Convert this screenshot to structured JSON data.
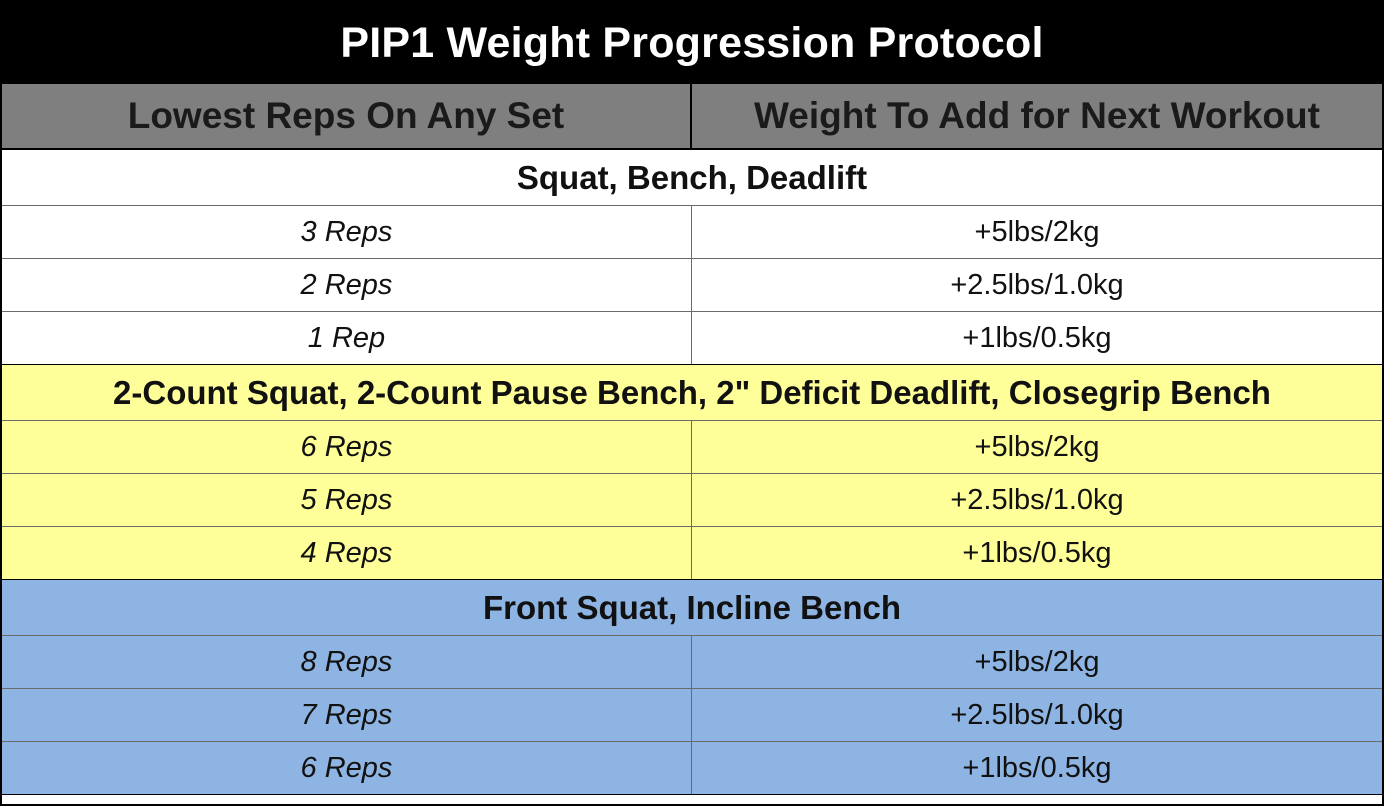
{
  "title": "PIP1 Weight Progression Protocol",
  "headers": {
    "left": "Lowest Reps On Any Set",
    "right": "Weight To Add for Next Workout"
  },
  "groups": [
    {
      "title": "Squat, Bench, Deadlift",
      "background": "#ffffff",
      "rows": [
        {
          "reps": "3 Reps",
          "weight": "+5lbs/2kg"
        },
        {
          "reps": "2 Reps",
          "weight": "+2.5lbs/1.0kg"
        },
        {
          "reps": "1 Rep",
          "weight": "+1lbs/0.5kg"
        }
      ]
    },
    {
      "title": "2-Count Squat, 2-Count Pause Bench, 2\" Deficit Deadlift, Closegrip Bench",
      "background": "#ffff99",
      "rows": [
        {
          "reps": "6 Reps",
          "weight": "+5lbs/2kg"
        },
        {
          "reps": "5 Reps",
          "weight": "+2.5lbs/1.0kg"
        },
        {
          "reps": "4 Reps",
          "weight": "+1lbs/0.5kg"
        }
      ]
    },
    {
      "title": "Front Squat, Incline Bench",
      "background": "#8db4e2",
      "rows": [
        {
          "reps": "8 Reps",
          "weight": "+5lbs/2kg"
        },
        {
          "reps": "7 Reps",
          "weight": "+2.5lbs/1.0kg"
        },
        {
          "reps": "6 Reps",
          "weight": "+1lbs/0.5kg"
        }
      ]
    }
  ],
  "colors": {
    "title_bg": "#000000",
    "header_bg": "#7f7f7f"
  }
}
